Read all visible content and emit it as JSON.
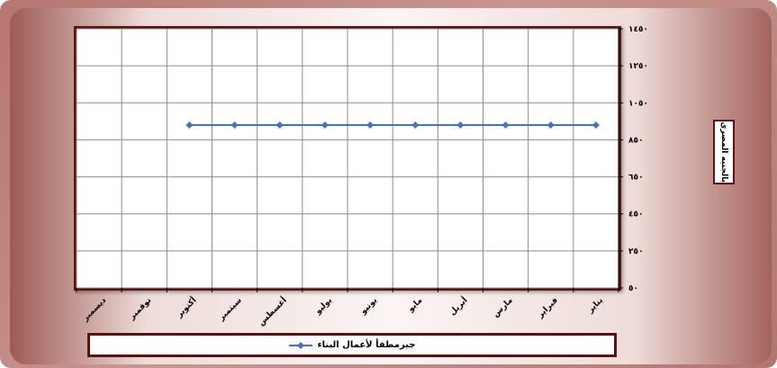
{
  "chart_data": {
    "type": "line",
    "categories": [
      "ديسمبر",
      "نوفمبر",
      "أكتوبر",
      "سبتمبر",
      "أغسطس",
      "يوليو",
      "يونيو",
      "مايو",
      "أبريل",
      "مارس",
      "فبراير",
      "يناير"
    ],
    "y_tick_labels": [
      "١٤٥٠",
      "١٢٥٠",
      "١٠٥٠",
      "٨٥٠",
      "٦٥٠",
      "٤٥٠",
      "٢٥٠",
      "٥٠"
    ],
    "ylim": [
      50,
      1450
    ],
    "ylabel": "بالجنيه المصري",
    "grid": true,
    "legend_position": "bottom",
    "series": [
      {
        "name": "جيرمطفأ لأعمال البناء",
        "color": "#4472c4",
        "values": [
          null,
          null,
          930,
          930,
          930,
          930,
          930,
          930,
          930,
          930,
          930,
          930
        ]
      }
    ]
  }
}
